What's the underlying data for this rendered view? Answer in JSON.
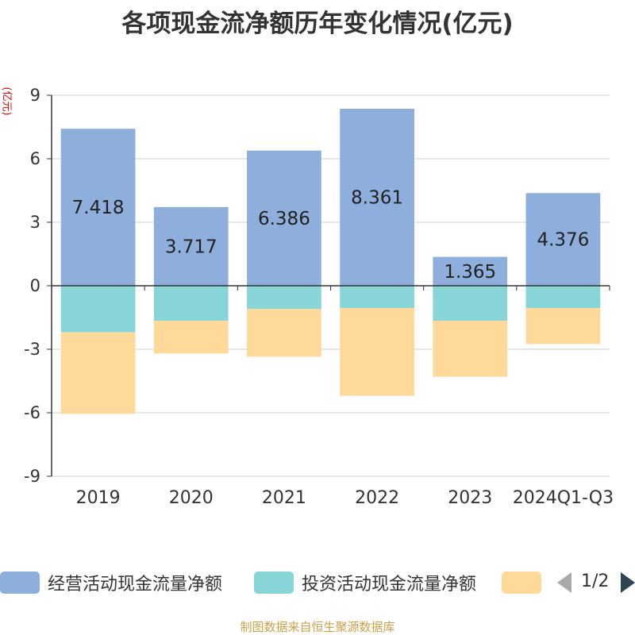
{
  "chart_data": {
    "type": "bar",
    "stacked": true,
    "title": "各项现金流净额历年变化情况(亿元)",
    "unit_label": "(亿元)",
    "categories": [
      "2019",
      "2020",
      "2021",
      "2022",
      "2023",
      "2024Q1-Q3"
    ],
    "series": [
      {
        "name": "经营活动现金流量净额",
        "color": "#8eaedb",
        "values": [
          7.418,
          3.717,
          6.386,
          8.361,
          1.365,
          4.376
        ]
      },
      {
        "name": "投资活动现金流量净额",
        "color": "#88d5d8",
        "values": [
          -2.2,
          -1.65,
          -1.1,
          -1.05,
          -1.65,
          -1.05
        ]
      },
      {
        "name": "",
        "color": "#ffd99a",
        "values": [
          -3.85,
          -1.55,
          -2.25,
          -4.15,
          -2.65,
          -1.7
        ]
      }
    ],
    "data_labels": [
      "7.418",
      "3.717",
      "6.386",
      "8.361",
      "1.365",
      "4.376"
    ],
    "yticks": [
      "9",
      "6",
      "3",
      "0",
      "-3",
      "-6",
      "-9"
    ],
    "ylim": [
      -9,
      9
    ],
    "grid": true,
    "legend_position": "bottom"
  },
  "legend": {
    "pager_text": "1/2"
  },
  "source": "制图数据来自恒生聚源数据库"
}
